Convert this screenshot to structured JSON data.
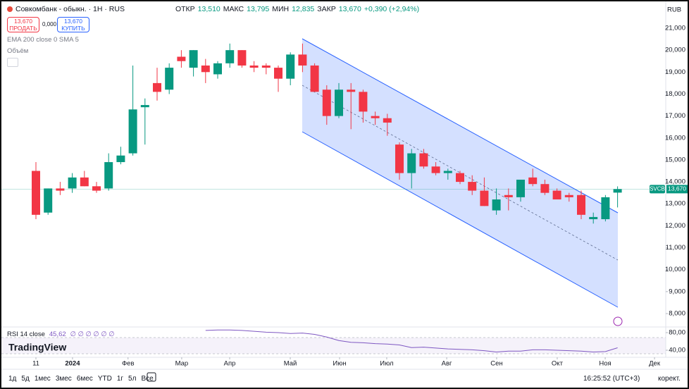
{
  "header": {
    "title": "Совкомбанк - обыкн. · 1H · RUS",
    "open_label": "ОТКР",
    "open": "13,510",
    "high_label": "МАКС",
    "high": "13,795",
    "low_label": "МИН",
    "low": "12,835",
    "close_label": "ЗАКР",
    "close": "13,670",
    "change": "+0,390 (+2,94%)",
    "currency": "RUB"
  },
  "trade": {
    "sell_price": "13,670",
    "sell": "ПРОДАТЬ",
    "spread": "0,000",
    "buy_price": "13,670",
    "buy": "КУПИТЬ"
  },
  "indicators": {
    "ema": "EMA 200 close 0 SMA 5",
    "volume": "Объём",
    "rsi": "RSI 14 close",
    "rsi_value": "45,62",
    "rsi_extra": "∅ ∅ ∅ ∅ ∅ ∅"
  },
  "logo": "TradingView",
  "toolbar": {
    "ranges": [
      "1д",
      "5д",
      "1мес",
      "3мес",
      "6мес",
      "YTD",
      "1г",
      "5л",
      "Все"
    ],
    "time": "16:25:52 (UTC+3)",
    "adjust": "корект."
  },
  "chart_data": {
    "type": "candlestick",
    "up_color": "#089981",
    "down_color": "#f23645",
    "categories": [
      null,
      null,
      null,
      null,
      null,
      null,
      null,
      null,
      null,
      null,
      null,
      null,
      null,
      null,
      null,
      null,
      null,
      null,
      null,
      null,
      null,
      null,
      null,
      null,
      null,
      null,
      null,
      null,
      null,
      null,
      null,
      null,
      null,
      null,
      null,
      null,
      null,
      null,
      null,
      null,
      null,
      null,
      null,
      null,
      null,
      null,
      null,
      null,
      null
    ],
    "open": [
      14.5,
      12.6,
      13.7,
      13.7,
      14.2,
      13.8,
      13.7,
      14.9,
      15.3,
      17.4,
      18.5,
      18.2,
      19.7,
      19.2,
      19.3,
      18.9,
      19.4,
      20.0,
      19.3,
      19.3,
      19.2,
      18.7,
      19.8,
      19.3,
      18.2,
      17.0,
      18.2,
      18.1,
      17.0,
      16.9,
      15.7,
      14.4,
      15.3,
      14.7,
      14.4,
      14.4,
      14.0,
      13.6,
      12.7,
      13.4,
      13.3,
      14.2,
      13.9,
      13.6,
      13.4,
      13.4,
      12.3,
      12.3,
      13.51
    ],
    "high": [
      14.9,
      13.7,
      14.0,
      14.4,
      14.5,
      14.0,
      15.3,
      15.6,
      19.3,
      17.8,
      19.2,
      19.4,
      20.0,
      20.0,
      19.6,
      19.5,
      20.3,
      20.0,
      19.5,
      19.4,
      19.3,
      19.9,
      20.3,
      19.4,
      18.4,
      18.5,
      18.5,
      18.2,
      17.2,
      17.1,
      15.8,
      15.5,
      15.5,
      14.9,
      14.6,
      14.5,
      14.3,
      14.2,
      13.7,
      13.7,
      14.1,
      14.6,
      14.1,
      13.7,
      13.5,
      13.6,
      12.6,
      13.4,
      13.795
    ],
    "low": [
      12.3,
      12.5,
      13.4,
      13.5,
      13.8,
      13.5,
      13.6,
      14.8,
      15.2,
      15.7,
      17.7,
      18.0,
      19.2,
      18.8,
      18.5,
      18.7,
      19.2,
      19.2,
      19.0,
      18.9,
      18.1,
      18.4,
      19.0,
      18.1,
      16.6,
      16.9,
      16.4,
      16.7,
      16.6,
      16.1,
      14.1,
      13.7,
      14.6,
      14.3,
      14.1,
      13.9,
      13.4,
      12.9,
      12.5,
      12.7,
      13.1,
      13.8,
      13.4,
      13.2,
      13.1,
      12.3,
      12.1,
      12.2,
      12.835
    ],
    "close": [
      12.5,
      13.7,
      13.6,
      14.2,
      13.8,
      13.6,
      14.9,
      15.2,
      17.3,
      17.5,
      18.1,
      19.2,
      19.5,
      20.0,
      19.0,
      19.4,
      20.0,
      19.3,
      19.2,
      19.2,
      18.7,
      19.8,
      19.3,
      18.1,
      17.0,
      18.2,
      18.1,
      17.2,
      16.9,
      16.7,
      14.4,
      15.3,
      14.7,
      14.4,
      14.5,
      14.0,
      13.6,
      12.9,
      13.2,
      13.3,
      14.1,
      13.9,
      13.5,
      13.2,
      13.3,
      12.5,
      12.4,
      13.3,
      13.67
    ],
    "ylim": [
      7.39,
      22.22
    ],
    "yticks": [
      {
        "value": 8,
        "label": "8,000"
      },
      {
        "value": 9,
        "label": "9,000"
      },
      {
        "value": 10,
        "label": "10,000"
      },
      {
        "value": 11,
        "label": "11,000"
      },
      {
        "value": 12,
        "label": "12,000"
      },
      {
        "value": 13,
        "label": "13,000"
      },
      {
        "value": 14,
        "label": "14,000"
      },
      {
        "value": 15,
        "label": "15,000"
      },
      {
        "value": 16,
        "label": "16,000"
      },
      {
        "value": 17,
        "label": "17,000"
      },
      {
        "value": 18,
        "label": "18,000"
      },
      {
        "value": 19,
        "label": "19,000"
      },
      {
        "value": 20,
        "label": "20,000"
      },
      {
        "value": 21,
        "label": "21,000"
      }
    ],
    "xticks": [
      {
        "value": 0,
        "label": "11"
      },
      {
        "value": 3.02,
        "label": "2024"
      },
      {
        "value": 7.6,
        "label": "Фев"
      },
      {
        "value": 12.03,
        "label": "Мар"
      },
      {
        "value": 15.99,
        "label": "Апр"
      },
      {
        "value": 20.99,
        "label": "Май"
      },
      {
        "value": 25.06,
        "label": "Июн"
      },
      {
        "value": 28.95,
        "label": "Июл"
      },
      {
        "value": 33.9,
        "label": "Авг"
      },
      {
        "value": 38.02,
        "label": "Сен"
      },
      {
        "value": 43.02,
        "label": "Окт"
      },
      {
        "value": 46.98,
        "label": "Ноя"
      },
      {
        "value": 51.05,
        "label": "Дек"
      }
    ],
    "last_price": {
      "symbol": "SVCB",
      "value": 13.67,
      "label": "13,670"
    },
    "rsi": {
      "values": [
        null,
        null,
        null,
        null,
        null,
        null,
        null,
        null,
        null,
        null,
        null,
        null,
        null,
        null,
        85,
        86,
        86,
        85,
        83,
        81,
        80,
        78,
        79,
        76,
        70,
        62,
        58,
        57,
        55,
        54,
        52,
        46,
        47,
        45,
        43,
        42,
        41,
        39,
        36,
        38,
        38,
        41,
        41,
        40,
        39,
        38,
        36,
        37,
        45.62
      ],
      "color": "#7e57c2",
      "ylim": [
        27.2,
        91.2
      ],
      "yticks": [
        {
          "value": 80,
          "label": "80,00"
        },
        {
          "value": 40,
          "label": "40,00"
        }
      ]
    }
  }
}
